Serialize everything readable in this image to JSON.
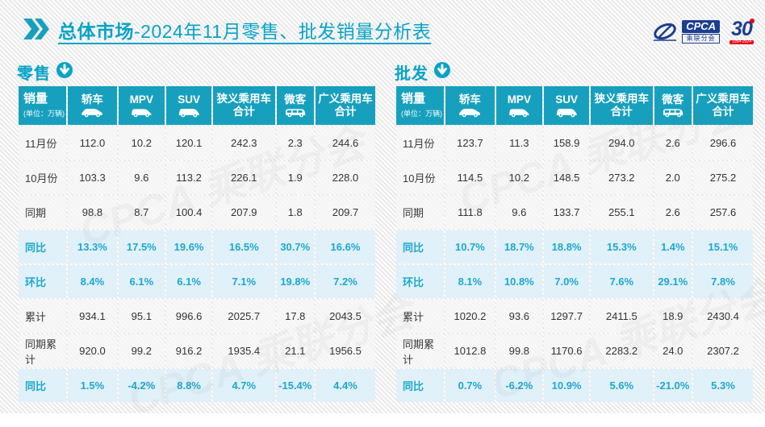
{
  "page": {
    "title_bold": "总体市场",
    "title_rest": "-2024年11月零售、批发销量分析表"
  },
  "logos": {
    "cpca_acronym": "CPCA",
    "cpca_name": "乘联分会",
    "anniversary_number": "30",
    "anniversary_years": "1994-2024",
    "watermark": "CPCA 乘联分会"
  },
  "table_meta": {
    "sales_label": "销量",
    "unit_label": "(单位：万辆)",
    "columns_display": [
      "轿车",
      "MPV",
      "SUV",
      "狭义乘用车\n合计",
      "微客",
      "广义乘用车\n合计"
    ],
    "column_keys": [
      "sedan",
      "mpv",
      "suv",
      "narrow-total",
      "minivan",
      "broad-total"
    ],
    "column_icons": [
      "sedan-car-icon",
      "mpv-car-icon",
      "suv-car-icon",
      null,
      "minivan-icon",
      null
    ]
  },
  "colors": {
    "accent_teal": "#08a3c7",
    "header_bg": "#17a0be",
    "highlight_row_bg": "#dff0f9",
    "highlight_text": "#1da7ce",
    "body_text": "#333333",
    "cpca_blue": "#1c3e90",
    "anniversary_red": "#e60012"
  },
  "chart_data": [
    {
      "type": "table",
      "title": "零售",
      "unit": "万辆",
      "columns": [
        "销量",
        "轿车",
        "MPV",
        "SUV",
        "狭义乘用车合计",
        "微客",
        "广义乘用车合计"
      ],
      "rows": [
        {
          "label": "11月份",
          "values": [
            "112.0",
            "10.2",
            "120.1",
            "242.3",
            "2.3",
            "244.6"
          ],
          "highlight": false
        },
        {
          "label": "10月份",
          "values": [
            "103.3",
            "9.6",
            "113.2",
            "226.1",
            "1.9",
            "228.0"
          ],
          "highlight": false
        },
        {
          "label": "同期",
          "values": [
            "98.8",
            "8.7",
            "100.4",
            "207.9",
            "1.8",
            "209.7"
          ],
          "highlight": false
        },
        {
          "label": "同比",
          "values": [
            "13.3%",
            "17.5%",
            "19.6%",
            "16.5%",
            "30.7%",
            "16.6%"
          ],
          "highlight": true
        },
        {
          "label": "环比",
          "values": [
            "8.4%",
            "6.1%",
            "6.1%",
            "7.1%",
            "19.8%",
            "7.2%"
          ],
          "highlight": true
        },
        {
          "label": "累计",
          "values": [
            "934.1",
            "95.1",
            "996.6",
            "2025.7",
            "17.8",
            "2043.5"
          ],
          "highlight": false
        },
        {
          "label": "同期累计",
          "values": [
            "920.0",
            "99.2",
            "916.2",
            "1935.4",
            "21.1",
            "1956.5"
          ],
          "highlight": false
        },
        {
          "label": "同比",
          "values": [
            "1.5%",
            "-4.2%",
            "8.8%",
            "4.7%",
            "-15.4%",
            "4.4%"
          ],
          "highlight": true
        }
      ]
    },
    {
      "type": "table",
      "title": "批发",
      "unit": "万辆",
      "columns": [
        "销量",
        "轿车",
        "MPV",
        "SUV",
        "狭义乘用车合计",
        "微客",
        "广义乘用车合计"
      ],
      "rows": [
        {
          "label": "11月份",
          "values": [
            "123.7",
            "11.3",
            "158.9",
            "294.0",
            "2.6",
            "296.6"
          ],
          "highlight": false
        },
        {
          "label": "10月份",
          "values": [
            "114.5",
            "10.2",
            "148.5",
            "273.2",
            "2.0",
            "275.2"
          ],
          "highlight": false
        },
        {
          "label": "同期",
          "values": [
            "111.8",
            "9.6",
            "133.7",
            "255.1",
            "2.6",
            "257.6"
          ],
          "highlight": false
        },
        {
          "label": "同比",
          "values": [
            "10.7%",
            "18.7%",
            "18.8%",
            "15.3%",
            "1.4%",
            "15.1%"
          ],
          "highlight": true
        },
        {
          "label": "环比",
          "values": [
            "8.1%",
            "10.8%",
            "7.0%",
            "7.6%",
            "29.1%",
            "7.8%"
          ],
          "highlight": true
        },
        {
          "label": "累计",
          "values": [
            "1020.2",
            "93.6",
            "1297.7",
            "2411.5",
            "18.9",
            "2430.4"
          ],
          "highlight": false
        },
        {
          "label": "同期累计",
          "values": [
            "1012.8",
            "99.8",
            "1170.6",
            "2283.2",
            "24.0",
            "2307.2"
          ],
          "highlight": false
        },
        {
          "label": "同比",
          "values": [
            "0.7%",
            "-6.2%",
            "10.9%",
            "5.6%",
            "-21.0%",
            "5.3%"
          ],
          "highlight": true
        }
      ]
    }
  ]
}
